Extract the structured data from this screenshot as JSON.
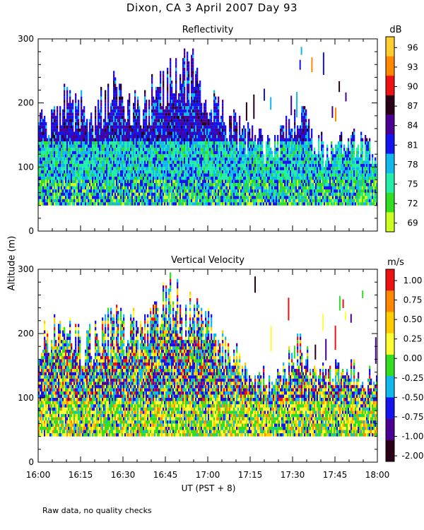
{
  "title": "Dixon, CA   3 April 2007   Day  93",
  "ylabel": "Altitude  (m)",
  "xlabel": "UT   (PST + 8)",
  "footnote": "Raw data, no quality checks",
  "chart_data": [
    {
      "type": "heatmap",
      "title": "Reflectivity",
      "colorbar_unit": "dB",
      "colorbar_labels": [
        "96",
        "93",
        "90",
        "87",
        "84",
        "81",
        "78",
        "75",
        "72",
        "69"
      ],
      "colors": [
        "#ffcc33",
        "#ff8800",
        "#ee1111",
        "#2a0018",
        "#4b0095",
        "#1414ee",
        "#10b8ee",
        "#22eeaa",
        "#33dd22",
        "#ccff22"
      ],
      "xlim": [
        "16:00",
        "18:00"
      ],
      "ylim": [
        0,
        300
      ],
      "ytick_labels": [
        "0",
        "100",
        "200",
        "300"
      ],
      "ytick_values": [
        0,
        100,
        200,
        300
      ],
      "xtick_labels": [
        "16:00",
        "16:15",
        "16:30",
        "16:45",
        "17:00",
        "17:15",
        "17:30",
        "17:45",
        "18:00"
      ],
      "data_floor_m": 40,
      "echo_top_m": [
        180,
        220,
        200,
        240,
        220,
        260,
        280,
        200,
        160,
        140,
        200,
        140,
        160,
        140
      ]
    },
    {
      "type": "heatmap",
      "title": "Vertical Velocity",
      "colorbar_unit": "m/s",
      "colorbar_labels": [
        "1.00",
        "0.75",
        "0.50",
        "0.25",
        "0.00",
        "-0.25",
        "-0.50",
        "-0.75",
        "-1.00",
        "-2.00"
      ],
      "colors": [
        "#ee1111",
        "#ff8800",
        "#ffcc00",
        "#ffff33",
        "#33dd22",
        "#10b8ee",
        "#1414ee",
        "#4b0095",
        "#2a0018"
      ],
      "xlim": [
        "16:00",
        "18:00"
      ],
      "ylim": [
        0,
        300
      ],
      "ytick_labels": [
        "0",
        "100",
        "200",
        "300"
      ],
      "ytick_values": [
        0,
        100,
        200,
        300
      ],
      "xtick_labels": [
        "16:00",
        "16:15",
        "16:30",
        "16:45",
        "17:00",
        "17:15",
        "17:30",
        "17:45",
        "18:00"
      ],
      "data_floor_m": 40,
      "echo_top_m": [
        220,
        220,
        200,
        240,
        220,
        280,
        260,
        200,
        160,
        140,
        200,
        140,
        160,
        140
      ]
    }
  ]
}
